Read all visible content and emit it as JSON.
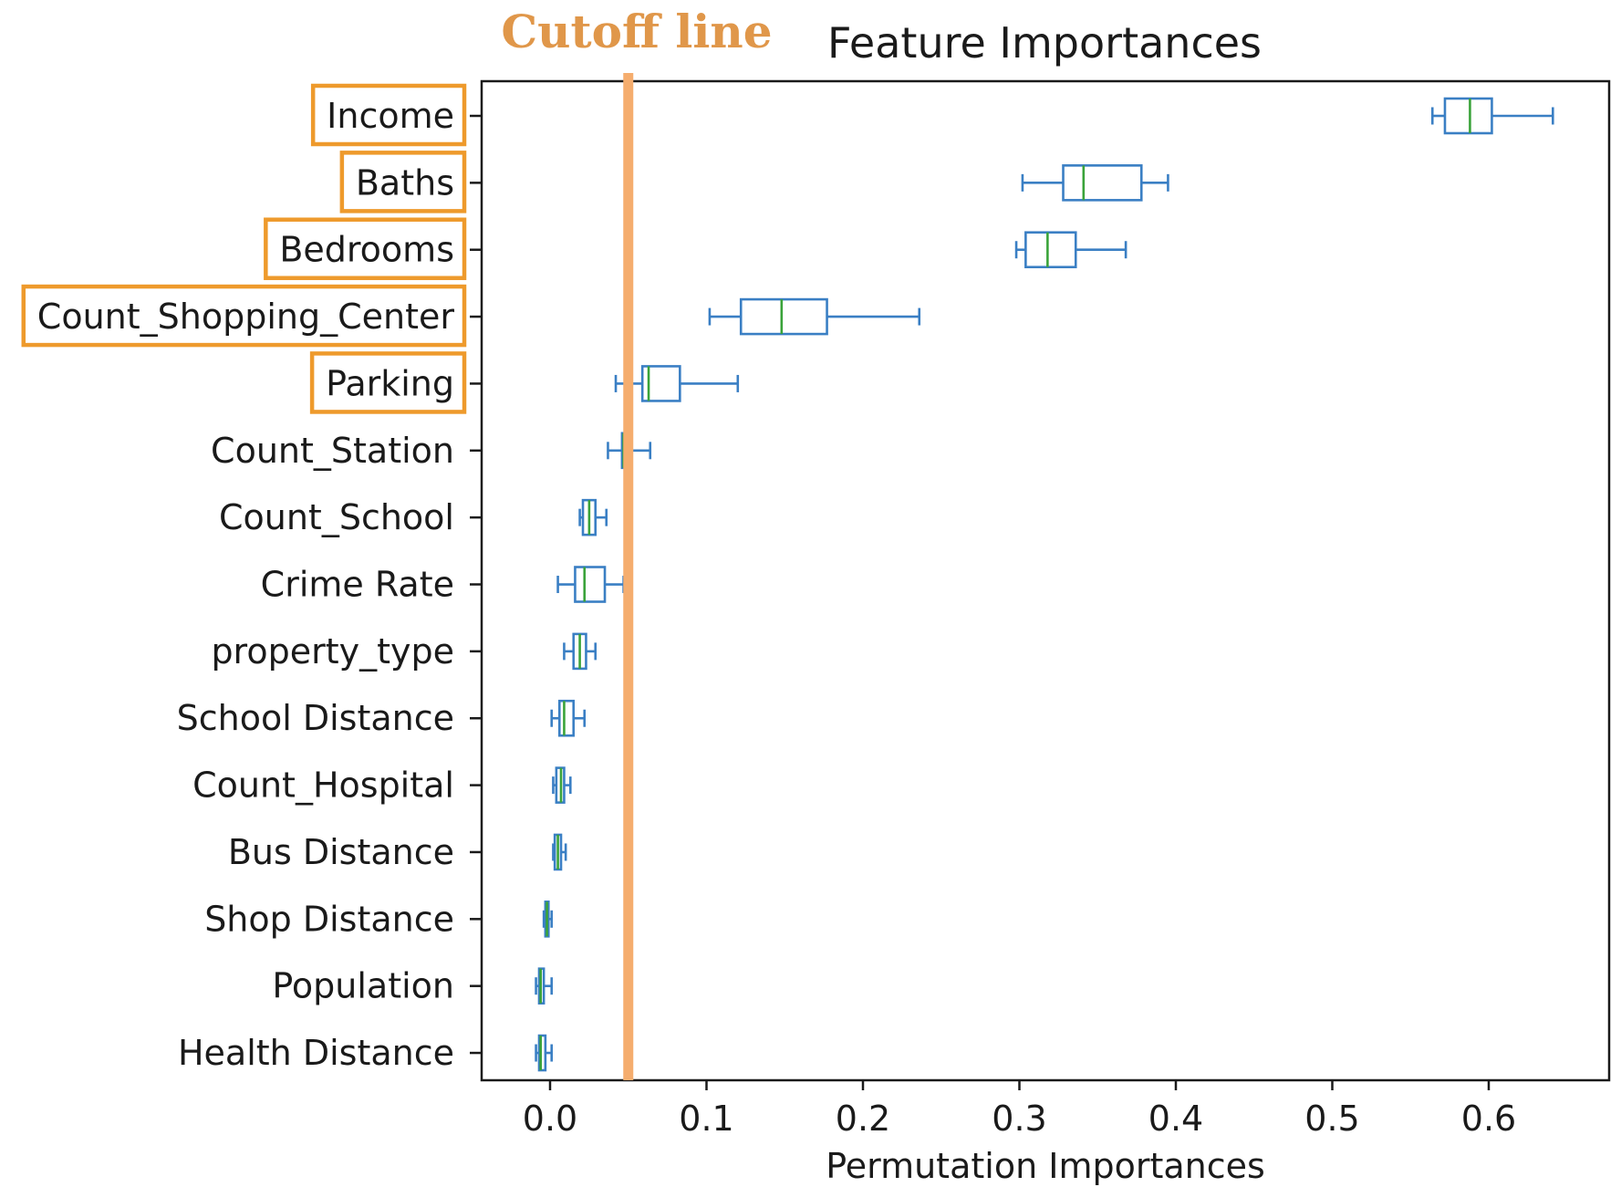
{
  "chart_data": {
    "type": "box",
    "orientation": "horizontal",
    "title": "Feature Importances",
    "xlabel": "Permutation Importances",
    "ylabel": "",
    "xlim": [
      -0.043,
      0.67
    ],
    "xticks": [
      0.0,
      0.1,
      0.2,
      0.3,
      0.4,
      0.5,
      0.6
    ],
    "xtick_labels": [
      "0.0",
      "0.1",
      "0.2",
      "0.3",
      "0.4",
      "0.5",
      "0.6"
    ],
    "grid": false,
    "legend": null,
    "colors": {
      "box": "#3a7fc4",
      "median": "#3aa33a",
      "cutoff_line": "#f5ad6e",
      "highlight_box": "#ee9a2c",
      "annotation_text": "#e0974a"
    },
    "annotation": {
      "label": "Cutoff line",
      "x": 0.05
    },
    "highlighted_features": [
      "Income",
      "Baths",
      "Bedrooms",
      "Count_Shopping_Center",
      "Parking"
    ],
    "features": [
      {
        "label": "Income",
        "whisker_low": 0.564,
        "q1": 0.572,
        "median": 0.588,
        "q3": 0.602,
        "whisker_high": 0.641
      },
      {
        "label": "Baths",
        "whisker_low": 0.302,
        "q1": 0.328,
        "median": 0.341,
        "q3": 0.378,
        "whisker_high": 0.395
      },
      {
        "label": "Bedrooms",
        "whisker_low": 0.298,
        "q1": 0.304,
        "median": 0.318,
        "q3": 0.336,
        "whisker_high": 0.368
      },
      {
        "label": "Count_Shopping_Center",
        "whisker_low": 0.102,
        "q1": 0.122,
        "median": 0.148,
        "q3": 0.177,
        "whisker_high": 0.236
      },
      {
        "label": "Parking",
        "whisker_low": 0.042,
        "q1": 0.059,
        "median": 0.063,
        "q3": 0.083,
        "whisker_high": 0.12
      },
      {
        "label": "Count_Station",
        "whisker_low": 0.037,
        "q1": 0.046,
        "median": 0.047,
        "q3": 0.052,
        "whisker_high": 0.064
      },
      {
        "label": "Count_School",
        "whisker_low": 0.019,
        "q1": 0.021,
        "median": 0.025,
        "q3": 0.029,
        "whisker_high": 0.036
      },
      {
        "label": "Crime Rate",
        "whisker_low": 0.005,
        "q1": 0.016,
        "median": 0.022,
        "q3": 0.035,
        "whisker_high": 0.047
      },
      {
        "label": "property_type",
        "whisker_low": 0.009,
        "q1": 0.015,
        "median": 0.019,
        "q3": 0.023,
        "whisker_high": 0.029
      },
      {
        "label": "School Distance",
        "whisker_low": 0.001,
        "q1": 0.006,
        "median": 0.009,
        "q3": 0.015,
        "whisker_high": 0.022
      },
      {
        "label": "Count_Hospital",
        "whisker_low": 0.002,
        "q1": 0.004,
        "median": 0.007,
        "q3": 0.009,
        "whisker_high": 0.013
      },
      {
        "label": "Bus Distance",
        "whisker_low": 0.002,
        "q1": 0.003,
        "median": 0.005,
        "q3": 0.007,
        "whisker_high": 0.01
      },
      {
        "label": "Shop Distance",
        "whisker_low": -0.004,
        "q1": -0.003,
        "median": -0.002,
        "q3": -0.001,
        "whisker_high": 0.001
      },
      {
        "label": "Population",
        "whisker_low": -0.009,
        "q1": -0.007,
        "median": -0.006,
        "q3": -0.004,
        "whisker_high": 0.001
      },
      {
        "label": "Health Distance",
        "whisker_low": -0.009,
        "q1": -0.007,
        "median": -0.006,
        "q3": -0.003,
        "whisker_high": 0.001
      }
    ]
  }
}
